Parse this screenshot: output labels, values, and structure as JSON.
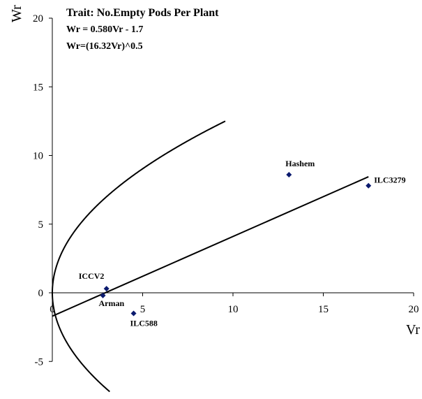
{
  "chart_data": {
    "type": "scatter",
    "title": "Trait: No.Empty Pods Per Plant",
    "annotations": [
      "Wr = 0.580Vr - 1.7",
      "Wr=(16.32Vr)^0.5"
    ],
    "xlabel": "Vr",
    "ylabel": "Wr",
    "xlim": [
      0,
      20
    ],
    "ylim": [
      -5,
      20
    ],
    "xticks": [
      "0",
      "5",
      "10",
      "15",
      "20"
    ],
    "yticks": [
      "-5",
      "0",
      "5",
      "10",
      "15",
      "20"
    ],
    "grid": false,
    "legend": "none",
    "marker_color": "#0b1a6e",
    "points": [
      {
        "label": "Hashem",
        "x": 13.1,
        "y": 8.6
      },
      {
        "label": "ILC3279",
        "x": 17.5,
        "y": 7.8
      },
      {
        "label": "ICCV2",
        "x": 3.0,
        "y": 0.3
      },
      {
        "label": "Arman",
        "x": 2.8,
        "y": -0.2
      },
      {
        "label": "ILC588",
        "x": 4.5,
        "y": -1.5
      }
    ],
    "regression_line": {
      "slope": 0.58,
      "intercept": -1.7,
      "x_range": [
        0,
        17.5
      ]
    },
    "limiting_parabola": {
      "coefficient": 16.32
    }
  }
}
